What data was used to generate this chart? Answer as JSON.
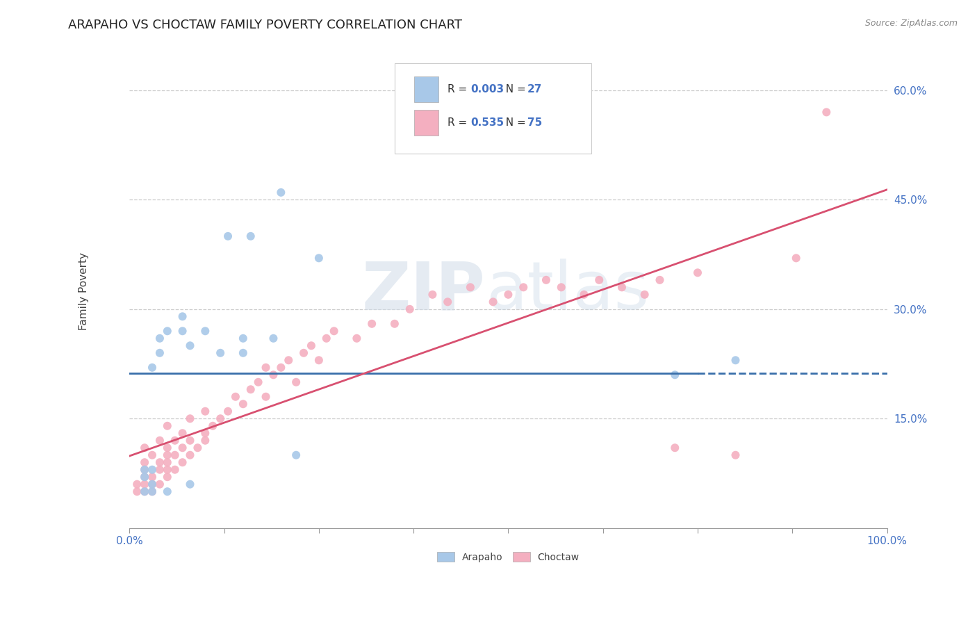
{
  "title": "ARAPAHO VS CHOCTAW FAMILY POVERTY CORRELATION CHART",
  "source_text": "Source: ZipAtlas.com",
  "ylabel": "Family Poverty",
  "xlim": [
    0,
    100
  ],
  "ylim": [
    0,
    65
  ],
  "yticks": [
    15,
    30,
    45,
    60
  ],
  "xticks": [
    0,
    12.5,
    25,
    37.5,
    50,
    62.5,
    75,
    87.5,
    100
  ],
  "xtick_label_positions": [
    0,
    100
  ],
  "xtick_labels_show": [
    "0.0%",
    "100.0%"
  ],
  "ytick_labels": [
    "15.0%",
    "30.0%",
    "45.0%",
    "60.0%"
  ],
  "arapaho_R": "0.003",
  "arapaho_N": 27,
  "choctaw_R": "0.535",
  "choctaw_N": 75,
  "arapaho_color": "#a8c8e8",
  "choctaw_color": "#f4afc0",
  "arapaho_line_color": "#3a6faa",
  "choctaw_line_color": "#d85070",
  "legend_color": "#4472c4",
  "grid_color": "#cccccc",
  "background_color": "#ffffff",
  "title_fontsize": 13,
  "axis_label_fontsize": 11,
  "tick_fontsize": 11,
  "marker_size": 75,
  "arapaho_x": [
    2,
    2,
    2,
    3,
    3,
    3,
    3,
    4,
    4,
    5,
    5,
    7,
    7,
    8,
    8,
    10,
    12,
    13,
    15,
    15,
    16,
    19,
    20,
    22,
    25,
    72,
    80
  ],
  "arapaho_y": [
    5,
    7,
    8,
    5,
    6,
    8,
    22,
    24,
    26,
    5,
    27,
    27,
    29,
    6,
    25,
    27,
    24,
    40,
    24,
    26,
    40,
    26,
    46,
    10,
    37,
    21,
    23
  ],
  "choctaw_x": [
    1,
    1,
    2,
    2,
    2,
    2,
    2,
    2,
    3,
    3,
    3,
    3,
    4,
    4,
    4,
    4,
    5,
    5,
    5,
    5,
    5,
    5,
    6,
    6,
    6,
    7,
    7,
    7,
    8,
    8,
    8,
    9,
    10,
    10,
    10,
    11,
    12,
    13,
    14,
    15,
    16,
    17,
    18,
    18,
    19,
    20,
    21,
    22,
    23,
    24,
    25,
    26,
    27,
    30,
    32,
    35,
    37,
    40,
    42,
    45,
    48,
    50,
    52,
    55,
    57,
    60,
    62,
    65,
    68,
    70,
    72,
    75,
    80,
    88,
    92
  ],
  "choctaw_y": [
    5,
    6,
    5,
    6,
    7,
    8,
    9,
    11,
    5,
    6,
    7,
    10,
    6,
    8,
    9,
    12,
    7,
    8,
    9,
    10,
    11,
    14,
    8,
    10,
    12,
    9,
    11,
    13,
    10,
    12,
    15,
    11,
    12,
    13,
    16,
    14,
    15,
    16,
    18,
    17,
    19,
    20,
    18,
    22,
    21,
    22,
    23,
    20,
    24,
    25,
    23,
    26,
    27,
    26,
    28,
    28,
    30,
    32,
    31,
    33,
    31,
    32,
    33,
    34,
    33,
    32,
    34,
    33,
    32,
    34,
    11,
    35,
    10,
    37,
    57
  ]
}
